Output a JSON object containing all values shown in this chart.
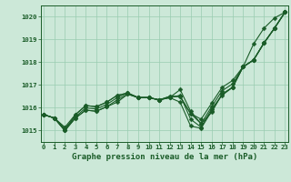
{
  "title": "Graphe pression niveau de la mer (hPa)",
  "background_color": "#cce8d8",
  "plot_bg_color": "#cce8d8",
  "grid_color": "#99ccb0",
  "line_color": "#1a5c28",
  "x_labels": [
    "0",
    "1",
    "2",
    "3",
    "4",
    "5",
    "6",
    "7",
    "8",
    "9",
    "10",
    "11",
    "12",
    "13",
    "14",
    "15",
    "16",
    "17",
    "18",
    "19",
    "20",
    "21",
    "22",
    "23"
  ],
  "ylim": [
    1014.5,
    1020.5
  ],
  "yticks": [
    1015,
    1016,
    1017,
    1018,
    1019,
    1020
  ],
  "series": [
    [
      1015.7,
      1015.55,
      1015.0,
      1015.55,
      1015.9,
      1015.85,
      1016.05,
      1016.25,
      1016.6,
      1016.45,
      1016.45,
      1016.35,
      1016.45,
      1016.25,
      1015.2,
      1015.1,
      1015.85,
      1016.6,
      1016.9,
      1017.8,
      1018.1,
      1018.85,
      1019.5,
      1020.2
    ],
    [
      1015.7,
      1015.55,
      1015.0,
      1015.55,
      1015.9,
      1015.85,
      1016.05,
      1016.35,
      1016.6,
      1016.45,
      1016.45,
      1016.35,
      1016.45,
      1016.55,
      1015.5,
      1015.15,
      1015.95,
      1016.55,
      1016.9,
      1017.8,
      1018.1,
      1018.85,
      1019.5,
      1020.2
    ],
    [
      1015.7,
      1015.55,
      1015.1,
      1015.6,
      1016.0,
      1015.95,
      1016.15,
      1016.45,
      1016.65,
      1016.45,
      1016.45,
      1016.35,
      1016.45,
      1016.8,
      1015.85,
      1015.3,
      1016.05,
      1016.75,
      1017.05,
      1017.8,
      1018.1,
      1018.85,
      1019.5,
      1020.2
    ],
    [
      1015.7,
      1015.55,
      1015.15,
      1015.7,
      1016.1,
      1016.05,
      1016.25,
      1016.55,
      1016.65,
      1016.45,
      1016.45,
      1016.35,
      1016.5,
      1016.5,
      1015.75,
      1015.5,
      1016.2,
      1016.9,
      1017.2,
      1017.8,
      1018.1,
      1018.85,
      1019.5,
      1020.2
    ],
    [
      1015.7,
      1015.55,
      1015.0,
      1015.7,
      1016.1,
      1016.05,
      1016.25,
      1016.55,
      1016.65,
      1016.45,
      1016.45,
      1016.35,
      1016.5,
      1016.5,
      1015.75,
      1015.3,
      1015.8,
      1016.6,
      1016.9,
      1017.8,
      1018.8,
      1019.5,
      1019.95,
      1020.2
    ]
  ],
  "marker_size": 2.5,
  "linewidth": 0.8,
  "tick_fontsize": 5.2,
  "title_fontsize": 6.5
}
